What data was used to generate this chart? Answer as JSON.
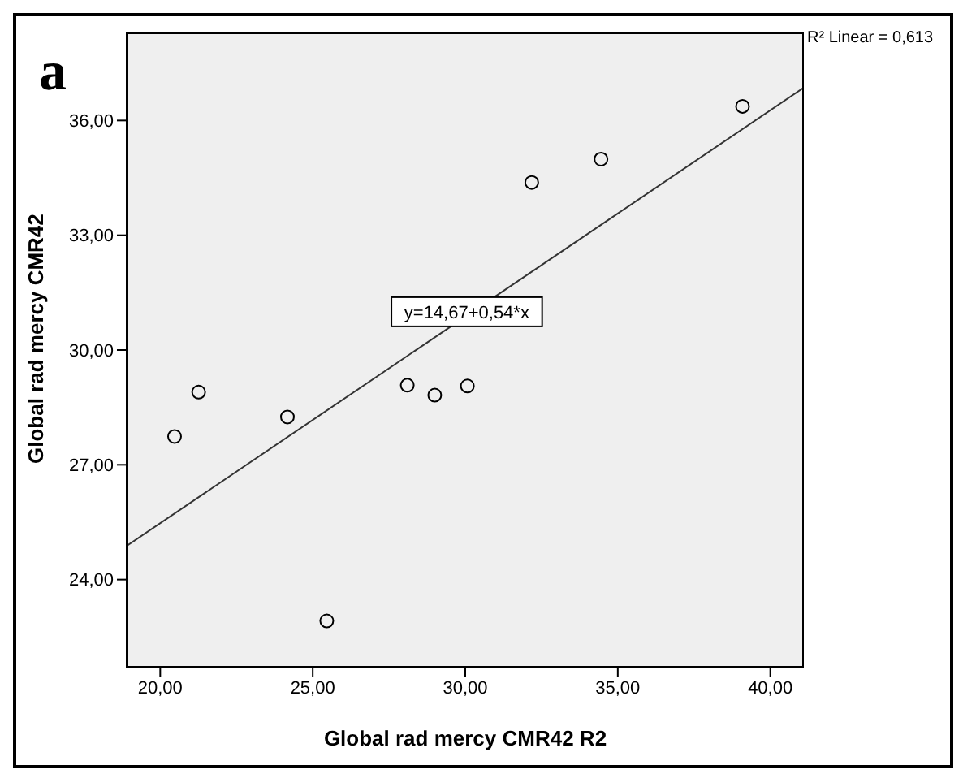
{
  "chart_data": {
    "type": "scatter",
    "xlabel": "Global rad mercy CMR42  R2",
    "ylabel": "Global rad mercy CMR42",
    "xlim": [
      18.9,
      41.1
    ],
    "ylim": [
      21.7,
      38.3
    ],
    "xticks": [
      {
        "value": 20,
        "label": "20,00"
      },
      {
        "value": 25,
        "label": "25,00"
      },
      {
        "value": 30,
        "label": "30,00"
      },
      {
        "value": 35,
        "label": "35,00"
      },
      {
        "value": 40,
        "label": "40,00"
      }
    ],
    "yticks": [
      {
        "value": 24,
        "label": "24,00"
      },
      {
        "value": 27,
        "label": "27,00"
      },
      {
        "value": 30,
        "label": "30,00"
      },
      {
        "value": 33,
        "label": "33,00"
      },
      {
        "value": 36,
        "label": "36,00"
      }
    ],
    "marker": "circle",
    "grid": false,
    "legend": false,
    "series": [
      {
        "color": "#000000",
        "x": [
          20.47,
          21.26,
          24.17,
          25.46,
          28.1,
          29.0,
          30.07,
          32.18,
          34.45,
          39.09
        ],
        "values": [
          27.74,
          28.9,
          28.25,
          22.92,
          29.08,
          28.82,
          29.06,
          34.38,
          34.99,
          36.37
        ]
      },
      {
        "type": "line",
        "marker": "none",
        "color": "#333333",
        "x": [
          18.9,
          41.1
        ],
        "values": [
          24.88,
          36.86
        ]
      }
    ],
    "annotations": [
      "a",
      "R² Linear = 0,613",
      {
        "text": "y=14,67+0,54*x",
        "x": 30.05,
        "y": 31.0
      }
    ]
  }
}
